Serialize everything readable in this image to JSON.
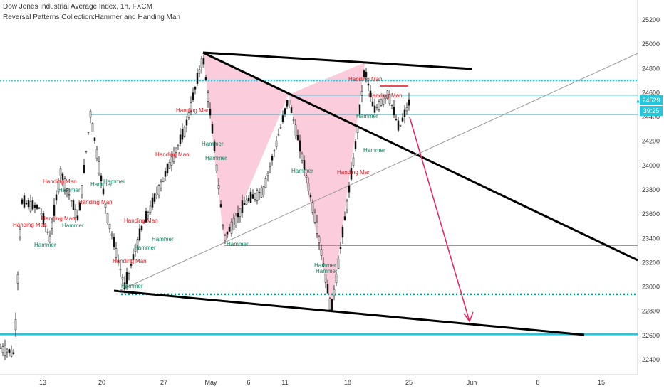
{
  "chart_data": {
    "type": "candlestick",
    "title": "Dow Jones Industrial Average Index, 1h, FXCM",
    "subtitle": "Reversal Patterns Collection:Hammer and Handing Man",
    "y_ticks": [
      25200,
      25000,
      24800,
      24600,
      24400,
      24200,
      24000,
      23800,
      23600,
      23400,
      23200,
      23000,
      22800,
      22600,
      22400
    ],
    "ylim": [
      22300,
      25350
    ],
    "x_ticks": [
      "13",
      "20",
      "27",
      "May",
      "6",
      "11",
      "18",
      "25",
      "Jun",
      "8",
      "15"
    ],
    "current_price": "24529",
    "countdown": "39:25",
    "horizontal_levels": [
      24700,
      24580,
      24420,
      23340,
      22940,
      22610
    ],
    "close_path": [
      [
        "13",
        22500
      ],
      [
        "13+",
        23600
      ],
      [
        "13+",
        23900
      ],
      [
        "13+",
        23350
      ],
      [
        "20",
        24420
      ],
      [
        "20+",
        23700
      ],
      [
        "20+",
        23050
      ],
      [
        "27",
        23300
      ],
      [
        "27+",
        24300
      ],
      [
        "May",
        24900
      ],
      [
        "May+",
        23350
      ],
      [
        "6",
        23800
      ],
      [
        "11",
        24550
      ],
      [
        "11+",
        23800
      ],
      [
        "18",
        22800
      ],
      [
        "18+",
        24800
      ],
      [
        "25",
        24300
      ],
      [
        "25",
        24529
      ]
    ],
    "annotations": {
      "hammer_label": "Hammer",
      "hanging_man_label": "Handing Man",
      "hammer_color": "#087f5b",
      "hanging_man_color": "#e0151b"
    },
    "colors": {
      "cyan": "#26c6da",
      "pink": "#f8bbd0",
      "arrow": "#e91e63",
      "candle": "#111111"
    }
  }
}
